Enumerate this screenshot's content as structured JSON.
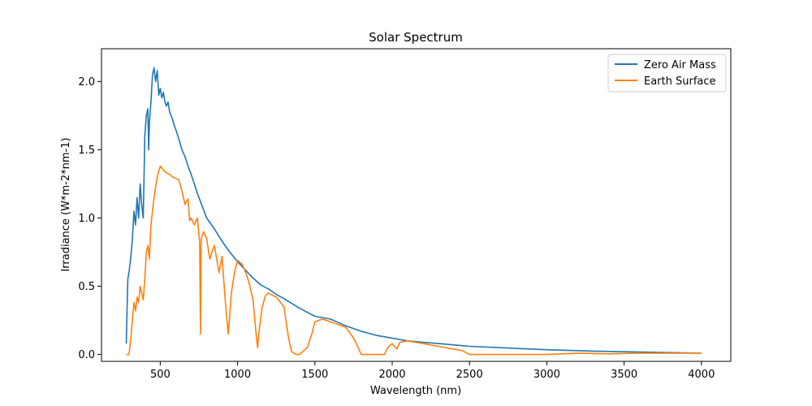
{
  "chart_data": {
    "type": "line",
    "title": "Solar Spectrum",
    "xlabel": "Wavelength (nm)",
    "ylabel": "Irradiance (W*m-2*nm-1)",
    "xlim": [
      120,
      4190
    ],
    "ylim": [
      -0.05,
      2.24
    ],
    "xticks": [
      500,
      1000,
      1500,
      2000,
      2500,
      3000,
      3500,
      4000
    ],
    "xtick_labels": [
      "500",
      "1000",
      "1500",
      "2000",
      "2500",
      "3000",
      "3500",
      "4000"
    ],
    "yticks": [
      0.0,
      0.5,
      1.0,
      1.5,
      2.0
    ],
    "ytick_labels": [
      "0.0",
      "0.5",
      "1.0",
      "1.5",
      "2.0"
    ],
    "grid": false,
    "legend_position": "top-right",
    "series": [
      {
        "name": "Zero Air Mass",
        "color": "#1f77b4",
        "x": [
          280,
          290,
          300,
          310,
          320,
          330,
          340,
          350,
          360,
          370,
          380,
          390,
          395,
          400,
          410,
          420,
          425,
          430,
          440,
          450,
          460,
          470,
          480,
          490,
          500,
          510,
          520,
          530,
          540,
          550,
          560,
          570,
          580,
          590,
          600,
          620,
          640,
          660,
          680,
          700,
          720,
          740,
          760,
          780,
          800,
          850,
          900,
          950,
          1000,
          1050,
          1100,
          1150,
          1200,
          1250,
          1300,
          1400,
          1500,
          1600,
          1700,
          1800,
          1900,
          2000,
          2100,
          2200,
          2300,
          2400,
          2500,
          2700,
          3000,
          3300,
          3600,
          4000
        ],
        "y": [
          0.08,
          0.55,
          0.62,
          0.72,
          0.85,
          1.05,
          0.95,
          1.15,
          1.0,
          1.25,
          1.1,
          1.0,
          1.3,
          1.6,
          1.75,
          1.8,
          1.5,
          1.7,
          1.85,
          2.05,
          2.1,
          2.0,
          2.08,
          1.9,
          1.95,
          1.88,
          1.92,
          1.85,
          1.82,
          1.85,
          1.78,
          1.75,
          1.72,
          1.68,
          1.65,
          1.58,
          1.5,
          1.45,
          1.38,
          1.32,
          1.25,
          1.18,
          1.12,
          1.06,
          1.0,
          0.92,
          0.83,
          0.75,
          0.68,
          0.62,
          0.56,
          0.51,
          0.48,
          0.44,
          0.41,
          0.34,
          0.28,
          0.26,
          0.21,
          0.17,
          0.14,
          0.12,
          0.1,
          0.09,
          0.08,
          0.07,
          0.06,
          0.05,
          0.035,
          0.025,
          0.018,
          0.01
        ]
      },
      {
        "name": "Earth Surface",
        "color": "#ff7f0e",
        "x": [
          280,
          295,
          300,
          310,
          320,
          330,
          340,
          350,
          360,
          370,
          380,
          390,
          400,
          410,
          420,
          430,
          440,
          450,
          460,
          480,
          500,
          520,
          540,
          560,
          580,
          600,
          620,
          640,
          660,
          680,
          690,
          700,
          720,
          740,
          755,
          760,
          765,
          780,
          800,
          820,
          850,
          880,
          900,
          920,
          940,
          960,
          980,
          1000,
          1030,
          1060,
          1080,
          1100,
          1120,
          1130,
          1140,
          1160,
          1180,
          1200,
          1250,
          1300,
          1330,
          1350,
          1380,
          1400,
          1450,
          1480,
          1500,
          1550,
          1600,
          1650,
          1700,
          1750,
          1780,
          1800,
          1850,
          1900,
          1950,
          1970,
          2000,
          2030,
          2050,
          2100,
          2150,
          2200,
          2300,
          2400,
          2450,
          2500,
          2600,
          2800,
          3000,
          3200,
          3400,
          3600,
          3800,
          4000
        ],
        "y": [
          0.0,
          0.0,
          0.02,
          0.12,
          0.26,
          0.38,
          0.32,
          0.42,
          0.38,
          0.5,
          0.45,
          0.4,
          0.55,
          0.75,
          0.8,
          0.7,
          0.95,
          1.05,
          1.15,
          1.3,
          1.38,
          1.35,
          1.33,
          1.32,
          1.3,
          1.29,
          1.28,
          1.2,
          1.1,
          1.14,
          0.98,
          1.0,
          0.95,
          1.0,
          0.82,
          0.15,
          0.85,
          0.9,
          0.85,
          0.7,
          0.8,
          0.6,
          0.72,
          0.4,
          0.15,
          0.45,
          0.6,
          0.69,
          0.66,
          0.58,
          0.5,
          0.4,
          0.15,
          0.05,
          0.18,
          0.35,
          0.43,
          0.45,
          0.42,
          0.35,
          0.12,
          0.02,
          0.0,
          0.0,
          0.05,
          0.15,
          0.24,
          0.26,
          0.24,
          0.22,
          0.2,
          0.12,
          0.05,
          0.0,
          0.0,
          0.0,
          0.0,
          0.05,
          0.08,
          0.04,
          0.09,
          0.1,
          0.09,
          0.08,
          0.06,
          0.04,
          0.03,
          0.0,
          0.0,
          0.0,
          0.0,
          0.01,
          0.005,
          0.01,
          0.01,
          0.01
        ]
      }
    ]
  }
}
